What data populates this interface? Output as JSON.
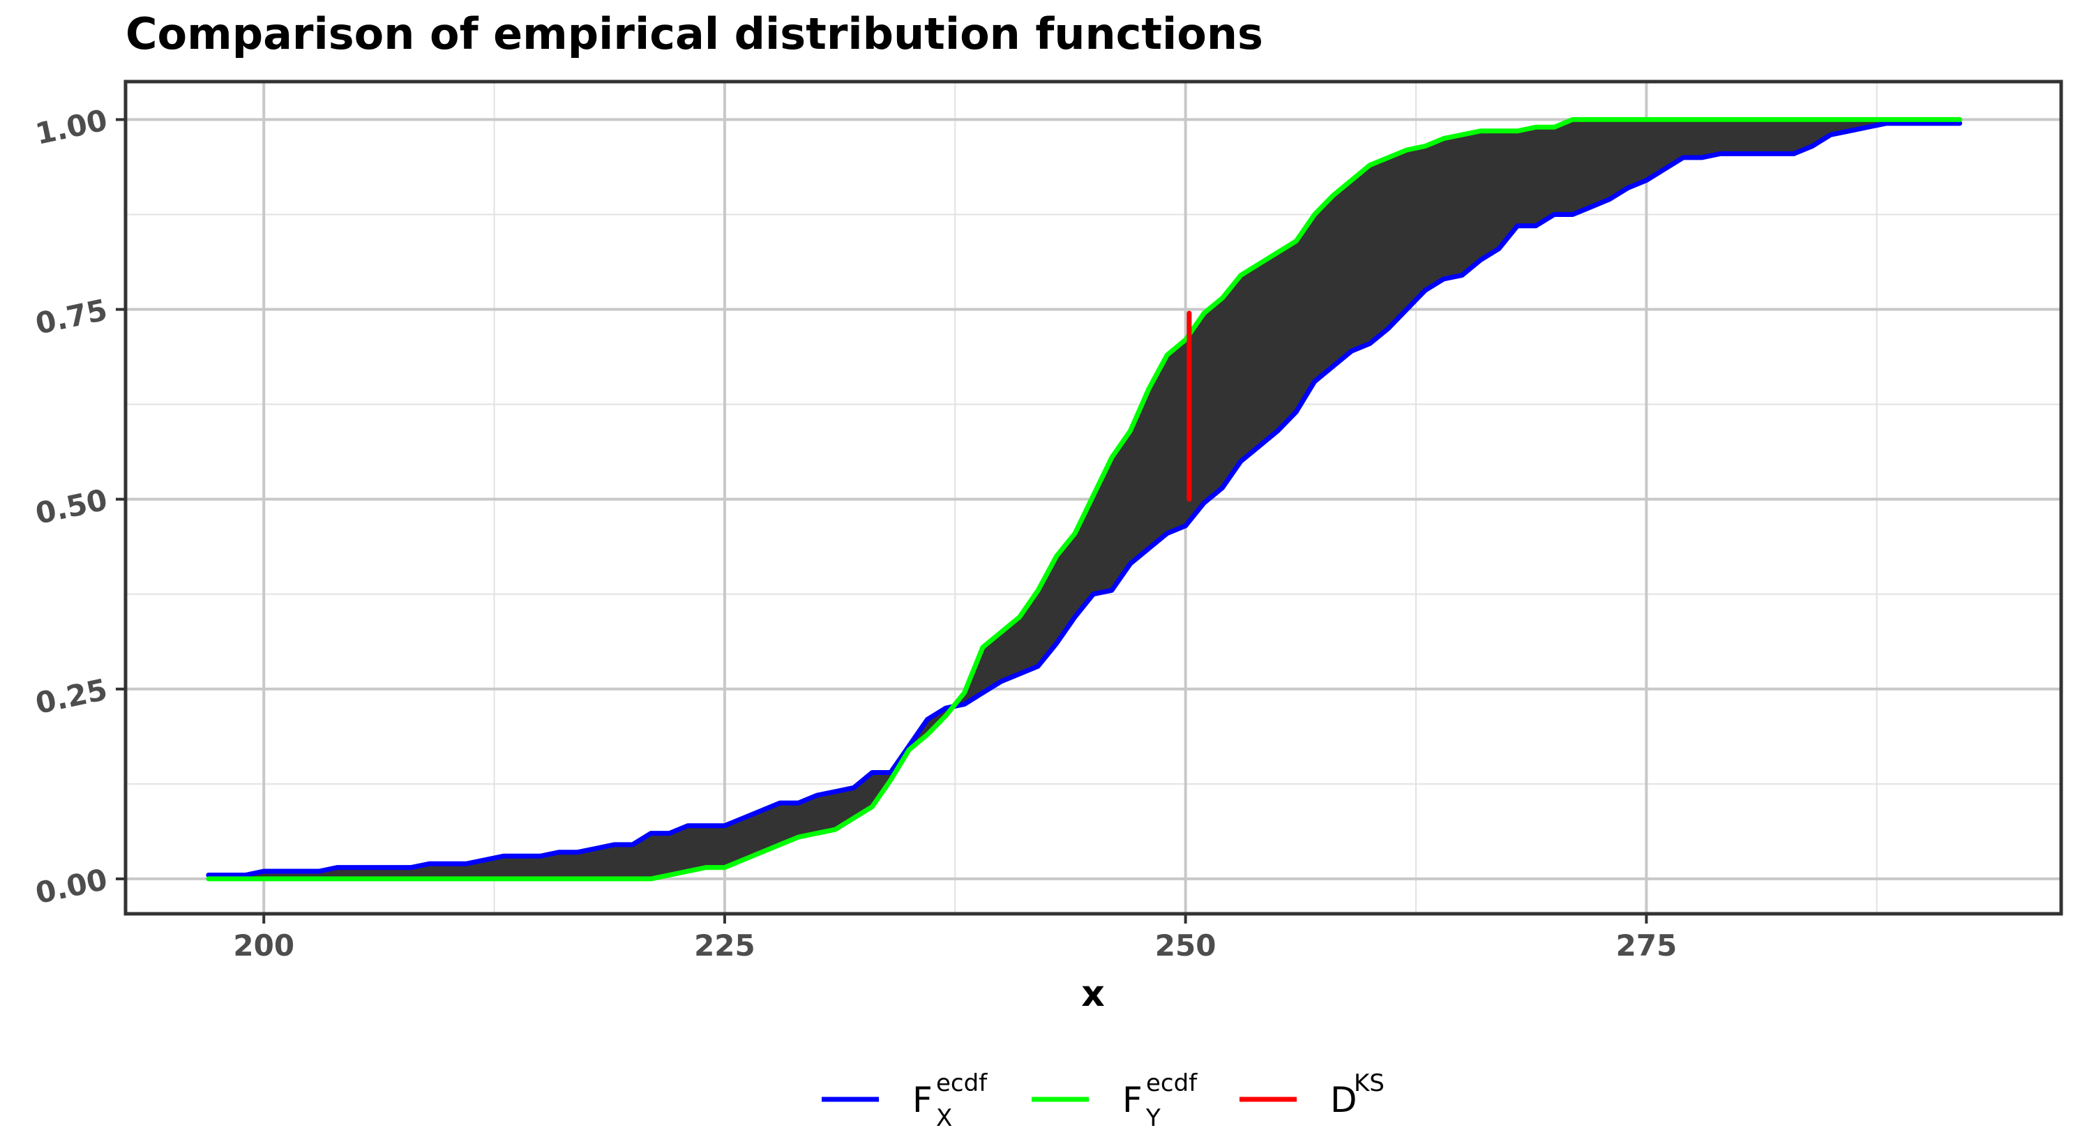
{
  "chart_data": {
    "type": "line",
    "title": "Comparison of empirical distribution functions",
    "xlabel": "x",
    "ylabel": "",
    "xlim": [
      192.5,
      297.5
    ],
    "ylim": [
      -0.046,
      1.05
    ],
    "x_ticks": [
      200,
      225,
      250,
      275
    ],
    "x_tick_labels": [
      "200",
      "225",
      "250",
      "275"
    ],
    "y_ticks": [
      0,
      0.25,
      0.5,
      0.75,
      1
    ],
    "y_tick_labels": [
      "0.00",
      "0.25",
      "0.50",
      "0.75",
      "1.00"
    ],
    "grid": true,
    "legend_position": "bottom",
    "shaded_region": {
      "description_color": "#333333",
      "between": [
        "F_X^ecdf",
        "F_Y^ecdf"
      ]
    },
    "series": [
      {
        "name": "F_X^ecdf",
        "legend_main": "F",
        "legend_sup": "ecdf",
        "legend_sub": "X",
        "color": "#0000ff",
        "x": [
          197,
          199,
          200,
          203,
          204,
          208,
          209,
          211,
          213,
          215,
          216,
          217,
          218,
          219,
          220,
          221,
          222,
          223,
          224,
          225,
          226,
          227,
          228,
          229,
          230,
          231,
          232,
          233,
          234,
          235,
          236,
          237,
          238,
          239,
          240,
          241,
          242,
          243,
          244,
          245,
          246,
          247,
          248,
          249,
          250,
          251,
          252,
          253,
          254,
          255,
          256,
          257,
          258,
          259,
          260,
          261,
          262,
          263,
          264,
          265,
          266,
          267,
          268,
          269,
          270,
          271,
          272,
          273,
          274,
          275,
          276,
          277,
          278,
          279,
          280,
          281,
          282,
          283,
          284,
          285,
          286,
          287,
          288,
          289,
          290,
          291,
          292
        ],
        "y": [
          0.005,
          0.005,
          0.01,
          0.01,
          0.015,
          0.015,
          0.02,
          0.02,
          0.03,
          0.03,
          0.035,
          0.035,
          0.04,
          0.045,
          0.045,
          0.06,
          0.06,
          0.07,
          0.07,
          0.07,
          0.08,
          0.09,
          0.1,
          0.1,
          0.11,
          0.115,
          0.12,
          0.14,
          0.14,
          0.175,
          0.21,
          0.225,
          0.23,
          0.245,
          0.26,
          0.27,
          0.28,
          0.31,
          0.345,
          0.375,
          0.38,
          0.415,
          0.435,
          0.455,
          0.465,
          0.495,
          0.515,
          0.55,
          0.57,
          0.59,
          0.615,
          0.655,
          0.675,
          0.695,
          0.705,
          0.725,
          0.75,
          0.775,
          0.79,
          0.795,
          0.815,
          0.83,
          0.86,
          0.86,
          0.875,
          0.875,
          0.885,
          0.895,
          0.91,
          0.92,
          0.935,
          0.95,
          0.95,
          0.955,
          0.955,
          0.955,
          0.955,
          0.955,
          0.965,
          0.98,
          0.985,
          0.99,
          0.995,
          0.995,
          0.995,
          0.995,
          0.995
        ]
      },
      {
        "name": "F_Y^ecdf",
        "legend_main": "F",
        "legend_sup": "ecdf",
        "legend_sub": "Y",
        "color": "#00ff00",
        "x": [
          197,
          199,
          200,
          203,
          204,
          208,
          209,
          211,
          213,
          215,
          216,
          217,
          218,
          219,
          220,
          221,
          222,
          223,
          224,
          225,
          226,
          227,
          228,
          229,
          230,
          231,
          232,
          233,
          234,
          235,
          236,
          237,
          238,
          239,
          240,
          241,
          242,
          243,
          244,
          245,
          246,
          247,
          248,
          249,
          250,
          251,
          252,
          253,
          254,
          255,
          256,
          257,
          258,
          259,
          260,
          261,
          262,
          263,
          264,
          265,
          266,
          267,
          268,
          269,
          270,
          271,
          272,
          273,
          274,
          275,
          276,
          277,
          278,
          279,
          280,
          281,
          282,
          283,
          284,
          285,
          286,
          287,
          288,
          289,
          290,
          291,
          292
        ],
        "y": [
          0,
          0,
          0,
          0,
          0,
          0,
          0,
          0,
          0,
          0,
          0,
          0,
          0,
          0,
          0,
          0,
          0.005,
          0.01,
          0.015,
          0.015,
          0.025,
          0.035,
          0.045,
          0.055,
          0.06,
          0.065,
          0.08,
          0.095,
          0.13,
          0.17,
          0.19,
          0.215,
          0.245,
          0.305,
          0.325,
          0.345,
          0.38,
          0.425,
          0.455,
          0.505,
          0.555,
          0.59,
          0.645,
          0.69,
          0.71,
          0.745,
          0.765,
          0.795,
          0.81,
          0.825,
          0.84,
          0.875,
          0.9,
          0.92,
          0.94,
          0.95,
          0.96,
          0.965,
          0.975,
          0.98,
          0.985,
          0.985,
          0.985,
          0.99,
          0.99,
          1,
          1,
          1,
          1,
          1,
          1,
          1,
          1,
          1,
          1,
          1,
          1,
          1,
          1,
          1,
          1,
          1,
          1,
          1,
          1,
          1,
          1
        ]
      },
      {
        "name": "D^KS",
        "legend_main": "D",
        "legend_sup": "KS",
        "legend_sub": "",
        "color": "#ff0000",
        "x": [
          250.2,
          250.2
        ],
        "y": [
          0.5,
          0.745
        ]
      }
    ]
  }
}
